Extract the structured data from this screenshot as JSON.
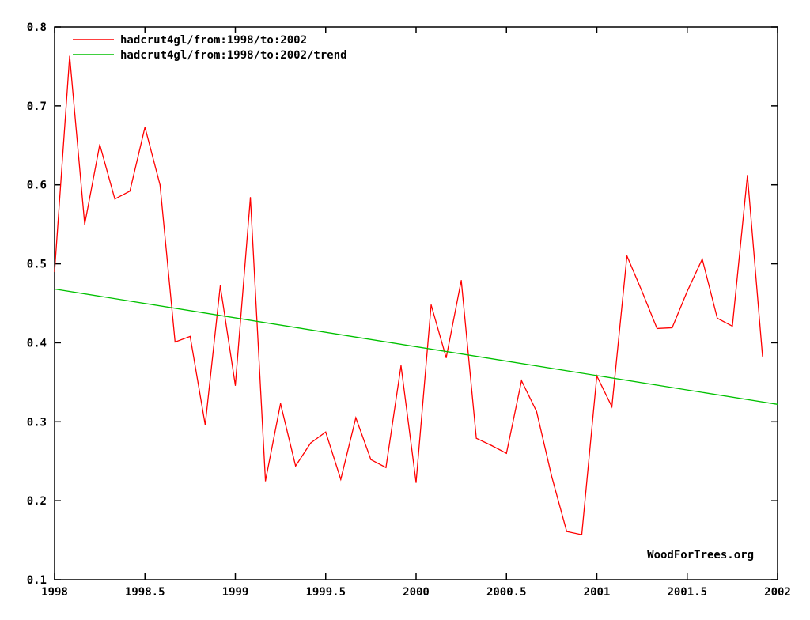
{
  "chart_data": {
    "type": "line",
    "title": "",
    "xlabel": "",
    "ylabel": "",
    "xlim": [
      1998,
      2002
    ],
    "ylim": [
      0.1,
      0.8
    ],
    "x_ticks": [
      "1998",
      "1998.5",
      "1999",
      "1999.5",
      "2000",
      "2000.5",
      "2001",
      "2001.5",
      "2002"
    ],
    "x_tick_values": [
      1998,
      1998.5,
      1999,
      1999.5,
      2000,
      2000.5,
      2001,
      2001.5,
      2002
    ],
    "y_ticks": [
      "0.1",
      "0.2",
      "0.3",
      "0.4",
      "0.5",
      "0.6",
      "0.7",
      "0.8"
    ],
    "y_tick_values": [
      0.1,
      0.2,
      0.3,
      0.4,
      0.5,
      0.6,
      0.7,
      0.8
    ],
    "grid": false,
    "legend_position": "top-left",
    "watermark": "WoodForTrees.org",
    "series": [
      {
        "name": "hadcrut4gl/from:1998/to:2002",
        "color": "#ff0000",
        "x_start": 1998,
        "x_step": 0.08333,
        "values": [
          0.49,
          0.763,
          0.55,
          0.651,
          0.582,
          0.592,
          0.673,
          0.6,
          0.401,
          0.408,
          0.296,
          0.472,
          0.346,
          0.584,
          0.225,
          0.323,
          0.244,
          0.273,
          0.287,
          0.227,
          0.305,
          0.252,
          0.242,
          0.371,
          0.223,
          0.448,
          0.381,
          0.479,
          0.279,
          0.27,
          0.26,
          0.352,
          0.313,
          0.231,
          0.161,
          0.157,
          0.358,
          0.319,
          0.51,
          0.465,
          0.418,
          0.419,
          0.465,
          0.506,
          0.431,
          0.421,
          0.612,
          0.383
        ]
      },
      {
        "name": "hadcrut4gl/from:1998/to:2002/trend",
        "color": "#00c000",
        "x": [
          1998,
          2002
        ],
        "values": [
          0.468,
          0.322
        ]
      }
    ]
  }
}
